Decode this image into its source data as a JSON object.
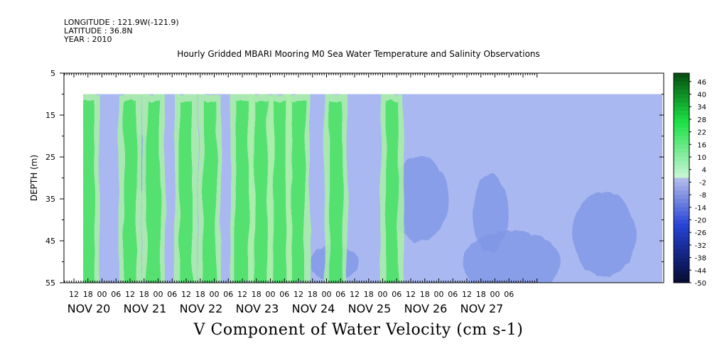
{
  "header": {
    "longitude": "LONGITUDE : 121.9W(-121.9)",
    "latitude": "LATITUDE : 36.8N",
    "year": "YEAR : 2010"
  },
  "chart_data": {
    "type": "heatmap",
    "title": "Hourly Gridded MBARI Mooring M0 Sea Water Temperature and Salinity Observations",
    "xlabel": "V Component of Water Velocity (cm s-1)",
    "ylabel": "DEPTH (m)",
    "y_axis": {
      "range": [
        5,
        55
      ],
      "inverted": true,
      "ticks": [
        5,
        15,
        25,
        35,
        45,
        55
      ],
      "data_range": [
        10,
        55
      ]
    },
    "x_axis": {
      "hour_ticks": [
        "12",
        "18",
        "00",
        "06",
        "12",
        "18",
        "00",
        "06",
        "12",
        "18",
        "00",
        "06",
        "12",
        "18",
        "00",
        "06",
        "12",
        "18",
        "00",
        "06",
        "12",
        "18",
        "00",
        "06",
        "12",
        "18",
        "00",
        "06",
        "12",
        "18",
        "00",
        "06"
      ],
      "day_labels": [
        "NOV 20",
        "NOV 21",
        "NOV 22",
        "NOV 23",
        "NOV 24",
        "NOV 25",
        "NOV 26",
        "NOV 27"
      ],
      "data_start": "NOV 20 16:00"
    },
    "colorbar": {
      "labels": [
        46,
        40,
        34,
        28,
        22,
        16,
        10,
        4,
        -2,
        -8,
        -14,
        -20,
        -26,
        -32,
        -38,
        -44,
        -50
      ],
      "min": -50,
      "max": 50,
      "step": 2
    },
    "velocity_bands": [
      {
        "time": "NOV 20 18",
        "sign": "positive"
      },
      {
        "time": "NOV 21 12",
        "sign": "positive"
      },
      {
        "time": "NOV 21 22",
        "sign": "positive"
      },
      {
        "time": "NOV 22 12",
        "sign": "positive"
      },
      {
        "time": "NOV 22 22",
        "sign": "positive"
      },
      {
        "time": "NOV 23 12",
        "sign": "positive"
      },
      {
        "time": "NOV 23 20",
        "sign": "positive"
      },
      {
        "time": "NOV 24 04",
        "sign": "positive"
      },
      {
        "time": "NOV 24 12",
        "sign": "positive"
      },
      {
        "time": "NOV 25 04",
        "sign": "positive"
      },
      {
        "time": "NOV 26 04",
        "sign": "positive"
      }
    ]
  }
}
